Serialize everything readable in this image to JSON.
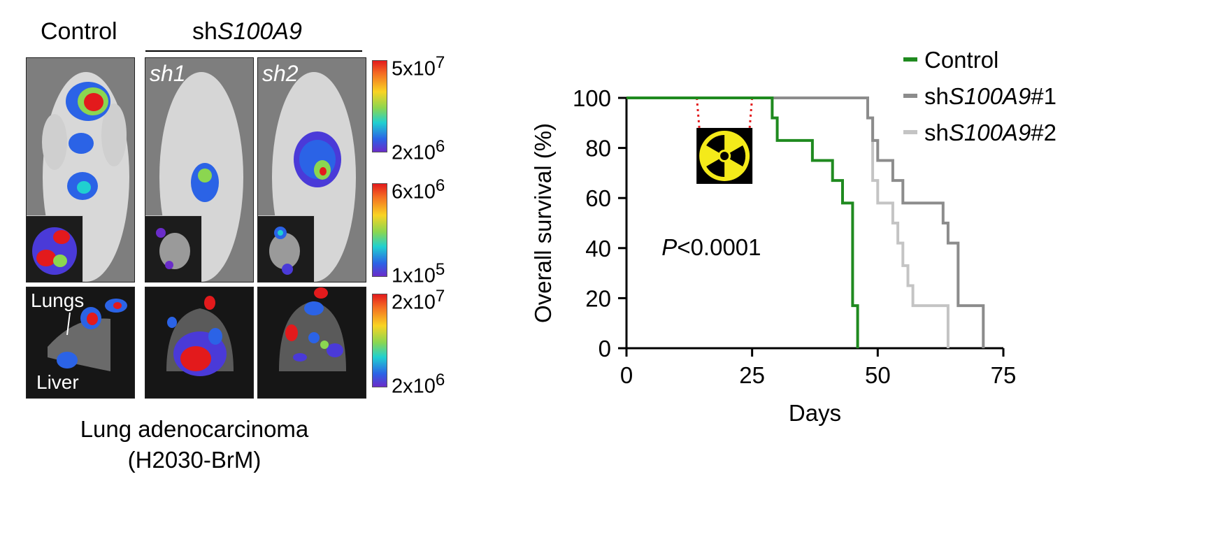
{
  "imaging": {
    "header_control": "Control",
    "header_group_prefix": "sh",
    "header_group_gene": "S100A9",
    "panel_labels": [
      "sh1",
      "sh2"
    ],
    "organ_labels": {
      "lungs": "Lungs",
      "liver": "Liver"
    },
    "colorbars": [
      {
        "max_base": "5x10",
        "max_exp": "7",
        "min_base": "2x10",
        "min_exp": "6"
      },
      {
        "max_base": "6x10",
        "max_exp": "6",
        "min_base": "1x10",
        "min_exp": "5"
      },
      {
        "max_base": "2x10",
        "max_exp": "7",
        "min_base": "2x10",
        "min_exp": "6"
      }
    ],
    "caption_line1": "Lung adenocarcinoma",
    "caption_line2": "(H2030-BrM)",
    "colors": {
      "colorbar": [
        "#e31a1c",
        "#f9d423",
        "#8bd650",
        "#20d0d0",
        "#2b63e6",
        "#6a2cc9"
      ]
    }
  },
  "chart_data": {
    "type": "line",
    "subtype": "kaplan-meier-step",
    "xlabel": "Days",
    "ylabel": "Overall survival (%)",
    "xlim": [
      0,
      75
    ],
    "ylim": [
      0,
      100
    ],
    "xticks": [
      0,
      25,
      50,
      75
    ],
    "yticks": [
      0,
      20,
      40,
      60,
      80,
      100
    ],
    "grid": false,
    "legend_position": "top-right",
    "annotation": {
      "p_italic": "P",
      "p_value": "<0.0001"
    },
    "radiation_window_days": [
      14,
      25
    ],
    "radiation_icon": "radiation-hazard-icon",
    "series": [
      {
        "legend_prefix": "Control",
        "legend_gene": "",
        "legend_suffix": "",
        "color": "#1f8a1f",
        "x": [
          0,
          29,
          29,
          30,
          30,
          37,
          37,
          41,
          41,
          43,
          43,
          45,
          45,
          46,
          46
        ],
        "y": [
          100,
          100,
          92,
          92,
          83,
          83,
          75,
          75,
          67,
          67,
          58,
          58,
          17,
          17,
          0
        ]
      },
      {
        "legend_prefix": "sh",
        "legend_gene": "S100A9",
        "legend_suffix": "#1",
        "color": "#8c8c8c",
        "x": [
          0,
          48,
          48,
          49,
          49,
          50,
          50,
          53,
          53,
          55,
          55,
          63,
          63,
          64,
          64,
          66,
          66,
          71,
          71
        ],
        "y": [
          100,
          100,
          92,
          92,
          83,
          83,
          75,
          75,
          67,
          67,
          58,
          58,
          50,
          50,
          42,
          42,
          17,
          17,
          0
        ]
      },
      {
        "legend_prefix": "sh",
        "legend_gene": "S100A9",
        "legend_suffix": "#2",
        "color": "#c4c4c4",
        "x": [
          0,
          48,
          48,
          49,
          49,
          50,
          50,
          53,
          53,
          54,
          54,
          55,
          55,
          56,
          56,
          57,
          57,
          59,
          59,
          61,
          61,
          64,
          64
        ],
        "y": [
          100,
          100,
          92,
          92,
          67,
          67,
          58,
          58,
          50,
          50,
          42,
          42,
          33,
          33,
          25,
          25,
          17,
          17,
          17,
          17,
          17,
          17,
          0
        ]
      }
    ]
  }
}
